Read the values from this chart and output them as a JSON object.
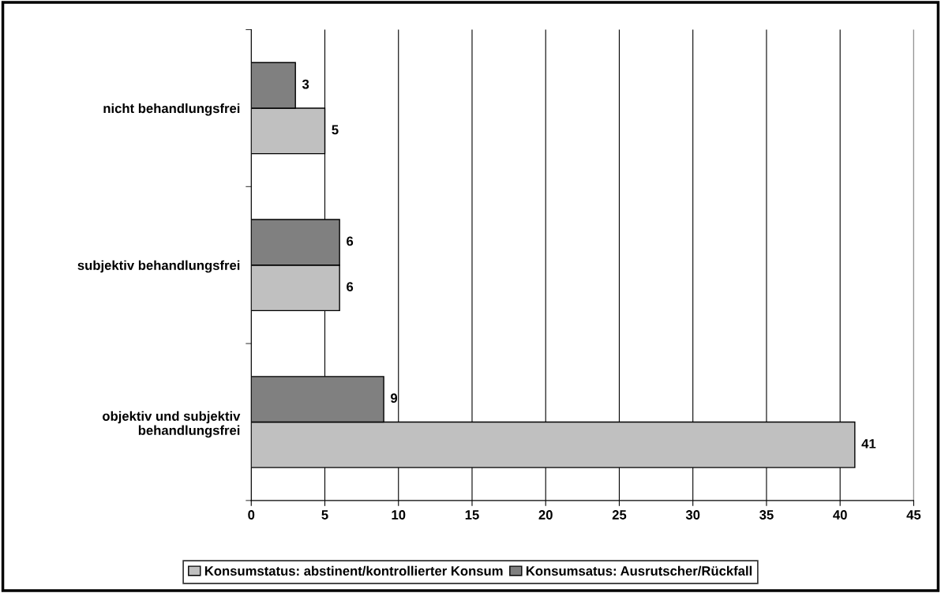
{
  "chart_data": {
    "type": "bar",
    "orientation": "horizontal",
    "categories": [
      "nicht behandlungsfrei",
      "subjektiv behandlungsfrei",
      "objektiv und subjektiv\nbehandlungsfrei"
    ],
    "series": [
      {
        "name": "Konsumstatus: abstinent/kontrollierter Konsum",
        "color": "#c0c0c0",
        "values": [
          5,
          6,
          41
        ]
      },
      {
        "name": "Konsumsatus: Ausrutscher/Rückfall",
        "color": "#808080",
        "values": [
          3,
          6,
          9
        ]
      }
    ],
    "xlim": [
      0,
      45
    ],
    "xticks": [
      0,
      5,
      10,
      15,
      20,
      25,
      30,
      35,
      40,
      45
    ],
    "grid": "x",
    "data_labels": true,
    "legend": "bottom"
  }
}
